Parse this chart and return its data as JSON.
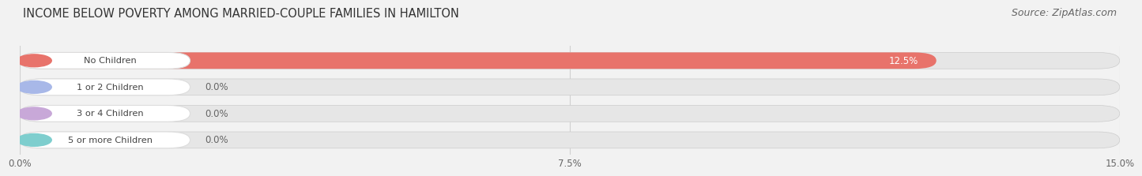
{
  "title": "INCOME BELOW POVERTY AMONG MARRIED-COUPLE FAMILIES IN HAMILTON",
  "source": "Source: ZipAtlas.com",
  "categories": [
    "No Children",
    "1 or 2 Children",
    "3 or 4 Children",
    "5 or more Children"
  ],
  "values": [
    12.5,
    0.0,
    0.0,
    0.0
  ],
  "bar_colors": [
    "#e8736b",
    "#a8b8e8",
    "#c8a8d8",
    "#7ecece"
  ],
  "xlim": [
    0,
    15.0
  ],
  "xticks": [
    0.0,
    7.5,
    15.0
  ],
  "xticklabels": [
    "0.0%",
    "7.5%",
    "15.0%"
  ],
  "background_color": "#f2f2f2",
  "bar_track_color": "#e6e6e6",
  "title_fontsize": 10.5,
  "source_fontsize": 9,
  "bar_height": 0.62,
  "bar_label_inside_color": "#ffffff",
  "bar_label_outside_color": "#666666",
  "pill_text_color": "#444444",
  "grid_color": "#d0d0d0"
}
